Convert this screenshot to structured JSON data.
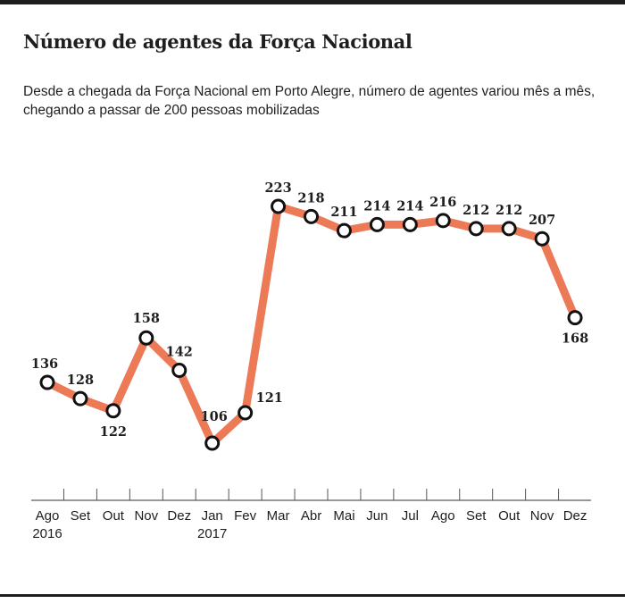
{
  "header": {
    "title": "Número de agentes da Força Nacional",
    "subtitle": "Desde a chegada da Força Nacional em Porto Alegre, número de agentes variou mês a mês, chegando a passar de 200 pessoas mobilizadas"
  },
  "chart_data": {
    "type": "line",
    "title": "Número de agentes da Força Nacional",
    "subtitle": "Desde a chegada da Força Nacional em Porto Alegre, número de agentes variou mês a mês, chegando a passar de 200 pessoas mobilizadas",
    "xlabel": "",
    "ylabel": "",
    "categories": [
      "Ago",
      "Set",
      "Out",
      "Nov",
      "Dez",
      "Jan",
      "Fev",
      "Mar",
      "Abr",
      "Mai",
      "Jun",
      "Jul",
      "Ago",
      "Set",
      "Out",
      "Nov",
      "Dez"
    ],
    "year_labels": [
      {
        "index": 0,
        "label": "2016"
      },
      {
        "index": 5,
        "label": "2017"
      }
    ],
    "series": [
      {
        "name": "Agentes",
        "color": "#ec7a57",
        "values": [
          136,
          128,
          122,
          158,
          142,
          106,
          121,
          223,
          218,
          211,
          214,
          214,
          216,
          212,
          212,
          207,
          168
        ],
        "label_position": [
          "above",
          "above",
          "below",
          "above",
          "above",
          "above",
          "right",
          "above",
          "above",
          "above",
          "above",
          "above",
          "above",
          "above",
          "above",
          "above",
          "below"
        ]
      }
    ],
    "grid": false,
    "legend": "none",
    "marker": "open-circle"
  }
}
